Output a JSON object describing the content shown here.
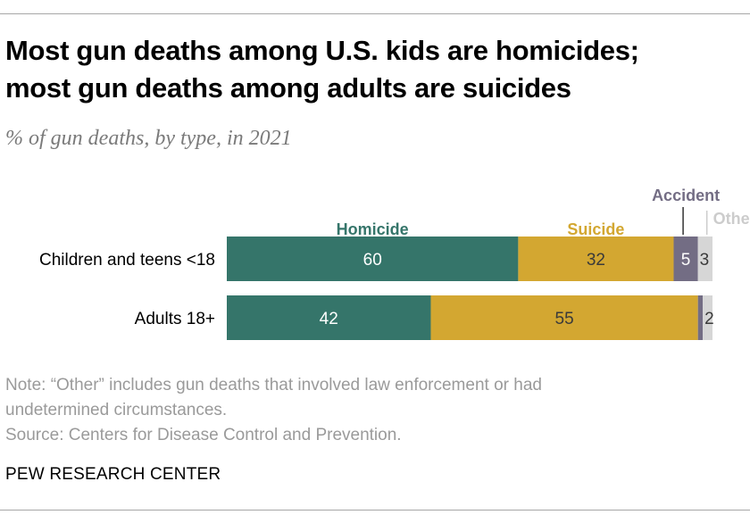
{
  "header": {
    "title_line1": "Most gun deaths among U.S. kids are homicides;",
    "title_line2": "most gun deaths among adults are suicides",
    "subtitle": "% of gun deaths, by type, in 2021"
  },
  "chart_data": {
    "type": "bar",
    "orientation": "horizontal",
    "stacked": true,
    "categories": [
      "Children and teens <18",
      "Adults 18+"
    ],
    "series": [
      {
        "name": "Homicide",
        "values": [
          60,
          42
        ],
        "labels": [
          "60",
          "42"
        ],
        "color": "#35756a",
        "label_color": "#35756a",
        "value_text_color": "#ffffff"
      },
      {
        "name": "Suicide",
        "values": [
          32,
          55
        ],
        "labels": [
          "32",
          "55"
        ],
        "color": "#d3a731",
        "label_color": "#d3a731",
        "value_text_color": "#3a3a3a"
      },
      {
        "name": "Accident",
        "values": [
          5,
          1
        ],
        "labels": [
          "5",
          ""
        ],
        "color": "#736d84",
        "label_color": "#736d84",
        "value_text_color": "#ffffff"
      },
      {
        "name": "Other",
        "values": [
          3,
          2
        ],
        "labels": [
          "3",
          "2"
        ],
        "color": "#d6d6d6",
        "label_color": "#cccccc",
        "value_text_color": "#3a3a3a"
      }
    ],
    "xlim": [
      0,
      100
    ],
    "legend": "inline-above",
    "grid": false
  },
  "footer": {
    "note_line1": "Note: “Other” includes gun deaths that involved law enforcement or had",
    "note_line2": "undetermined circumstances.",
    "source": "Source: Centers for Disease Control and Prevention.",
    "brand": "PEW RESEARCH CENTER"
  }
}
